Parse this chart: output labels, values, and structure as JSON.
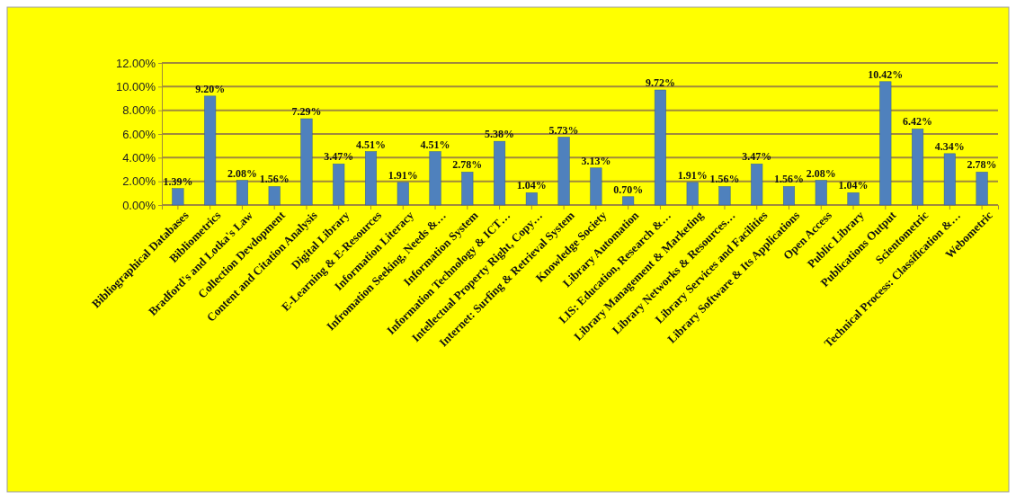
{
  "chart_data": {
    "type": "bar",
    "categories": [
      "Bibliographical Databases",
      "Bibliometrics",
      "Bradford's and Lotka's Law",
      "Collection Devdopment",
      "Content and Citation Analysis",
      "Digital Library",
      "E-Learning & E-Resources",
      "Information Literacy",
      "Infromation Seeking, Needs &…",
      "Information System",
      "Information Technology & ICT…",
      "Intellectual Property Right, Copy…",
      "Internet: Surfing & Retrieval System",
      "Knowledge Society",
      "Library Automation",
      "LIS: Education, Research &…",
      "Library Management & Marketing",
      "Library Networks & Resources…",
      "Library Services and Facilities",
      "Library Software & Its Applications",
      "Open Access",
      "Public Library",
      "Publications Output",
      "Scientometric",
      "Technical Process: Classification &…",
      "Webometric"
    ],
    "values": [
      1.39,
      9.2,
      2.08,
      1.56,
      7.29,
      3.47,
      4.51,
      1.91,
      4.51,
      2.78,
      5.38,
      1.04,
      5.73,
      3.13,
      0.7,
      9.72,
      1.91,
      1.56,
      3.47,
      1.56,
      2.08,
      1.04,
      10.42,
      6.42,
      4.34,
      2.78
    ],
    "value_labels": [
      "1.39%",
      "9.20%",
      "2.08%",
      "1.56%",
      "7.29%",
      "3.47%",
      "4.51%",
      "1.91%",
      "4.51%",
      "2.78%",
      "5.38%",
      "1.04%",
      "5.73%",
      "3.13%",
      "0.70%",
      "9.72%",
      "1.91%",
      "1.56%",
      "3.47%",
      "1.56%",
      "2.08%",
      "1.04%",
      "10.42%",
      "6.42%",
      "4.34%",
      "2.78%"
    ],
    "color": "#4f81bd",
    "ylim": [
      0,
      12
    ],
    "yticks": [
      {
        "value": 0,
        "label": "0.00%"
      },
      {
        "value": 2,
        "label": "2.00%"
      },
      {
        "value": 4,
        "label": "4.00%"
      },
      {
        "value": 6,
        "label": "6.00%"
      },
      {
        "value": 8,
        "label": "8.00%"
      },
      {
        "value": 10,
        "label": "10.00%"
      },
      {
        "value": 12,
        "label": "12.00%"
      }
    ],
    "grid": "y"
  }
}
